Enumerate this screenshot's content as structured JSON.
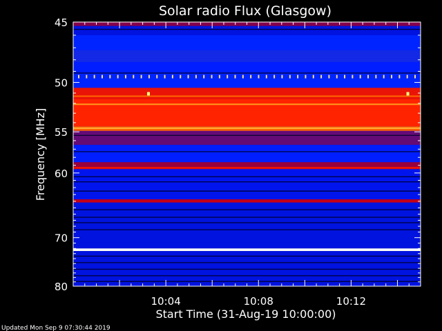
{
  "chart_data": {
    "type": "heatmap",
    "title": "Solar radio Flux (Glasgow)",
    "ylabel": "Frequency [MHz]",
    "xlabel": "Start Time (31-Aug-19 10:00:00)",
    "footer": "Updated Mon Sep  9 07:30:44 2019",
    "y_axis": {
      "min": 45,
      "max": 80,
      "inverted": true,
      "tick_values": [
        45,
        50,
        55,
        60,
        70,
        80
      ],
      "tick_labels": [
        "45",
        "50",
        "55",
        "60",
        "70",
        "80"
      ],
      "scale": "reciprocal"
    },
    "x_axis": {
      "tick_labels": [
        "10:04",
        "10:08",
        "10:12"
      ],
      "tick_minutes": [
        4,
        8,
        12
      ],
      "range_minutes": [
        0,
        15
      ]
    },
    "colormap": [
      "#000000",
      "#000060",
      "#0018ff",
      "#0030ff",
      "#800050",
      "#cc0010",
      "#ff2000",
      "#ff8000",
      "#ffff90",
      "#ffffff"
    ],
    "bands": [
      {
        "freq": [
          45.0,
          45.3
        ],
        "level": 0.45
      },
      {
        "freq": [
          45.3,
          46.0
        ],
        "level": 0.2
      },
      {
        "freq": [
          46.0,
          47.2
        ],
        "level": 0.28
      },
      {
        "freq": [
          47.2,
          48.2
        ],
        "level": 0.35
      },
      {
        "freq": [
          48.2,
          49.2
        ],
        "level": 0.25
      },
      {
        "freq": [
          49.2,
          50.5
        ],
        "level": 0.28
      },
      {
        "freq": [
          50.5,
          51.6
        ],
        "level": 0.62
      },
      {
        "freq": [
          51.6,
          54.4
        ],
        "level": 0.67
      },
      {
        "freq": [
          54.4,
          54.9
        ],
        "level": 0.74
      },
      {
        "freq": [
          54.9,
          56.5
        ],
        "level": 0.42
      },
      {
        "freq": [
          56.5,
          58.6
        ],
        "level": 0.25
      },
      {
        "freq": [
          58.6,
          59.2
        ],
        "level": 0.48
      },
      {
        "freq": [
          59.2,
          59.5
        ],
        "level": 0.6
      },
      {
        "freq": [
          59.5,
          63.7
        ],
        "level": 0.21
      },
      {
        "freq": [
          63.7,
          64.2
        ],
        "level": 0.52
      },
      {
        "freq": [
          64.2,
          72.0
        ],
        "level": 0.2
      },
      {
        "freq": [
          72.0,
          72.5
        ],
        "level": 0.95
      },
      {
        "freq": [
          72.5,
          80.0
        ],
        "level": 0.2
      }
    ],
    "lines": [
      {
        "freq": 51.3,
        "level": 0.75
      },
      {
        "freq": 52.1,
        "level": 0.8
      },
      {
        "freq": 54.6,
        "level": 0.82
      },
      {
        "freq": 59.3,
        "level": 0.63
      },
      {
        "freq": 64.0,
        "level": 0.55
      },
      {
        "freq": 72.25,
        "level": 1.0
      }
    ],
    "dark_lines": [
      45.55,
      49.15,
      55.4,
      57.3,
      60.5,
      61.2,
      62.5,
      65.3,
      66.5,
      67.4,
      68.6,
      73.5,
      74.8,
      76.2,
      77.6,
      78.9
    ],
    "markers": {
      "freq": 49.5,
      "count": 44,
      "color": "#ffe080"
    },
    "spots": [
      {
        "minute": 3.25,
        "freq": 51.1,
        "color": "#ffff80"
      },
      {
        "minute": 14.45,
        "freq": 51.1,
        "color": "#ffff80"
      }
    ]
  }
}
